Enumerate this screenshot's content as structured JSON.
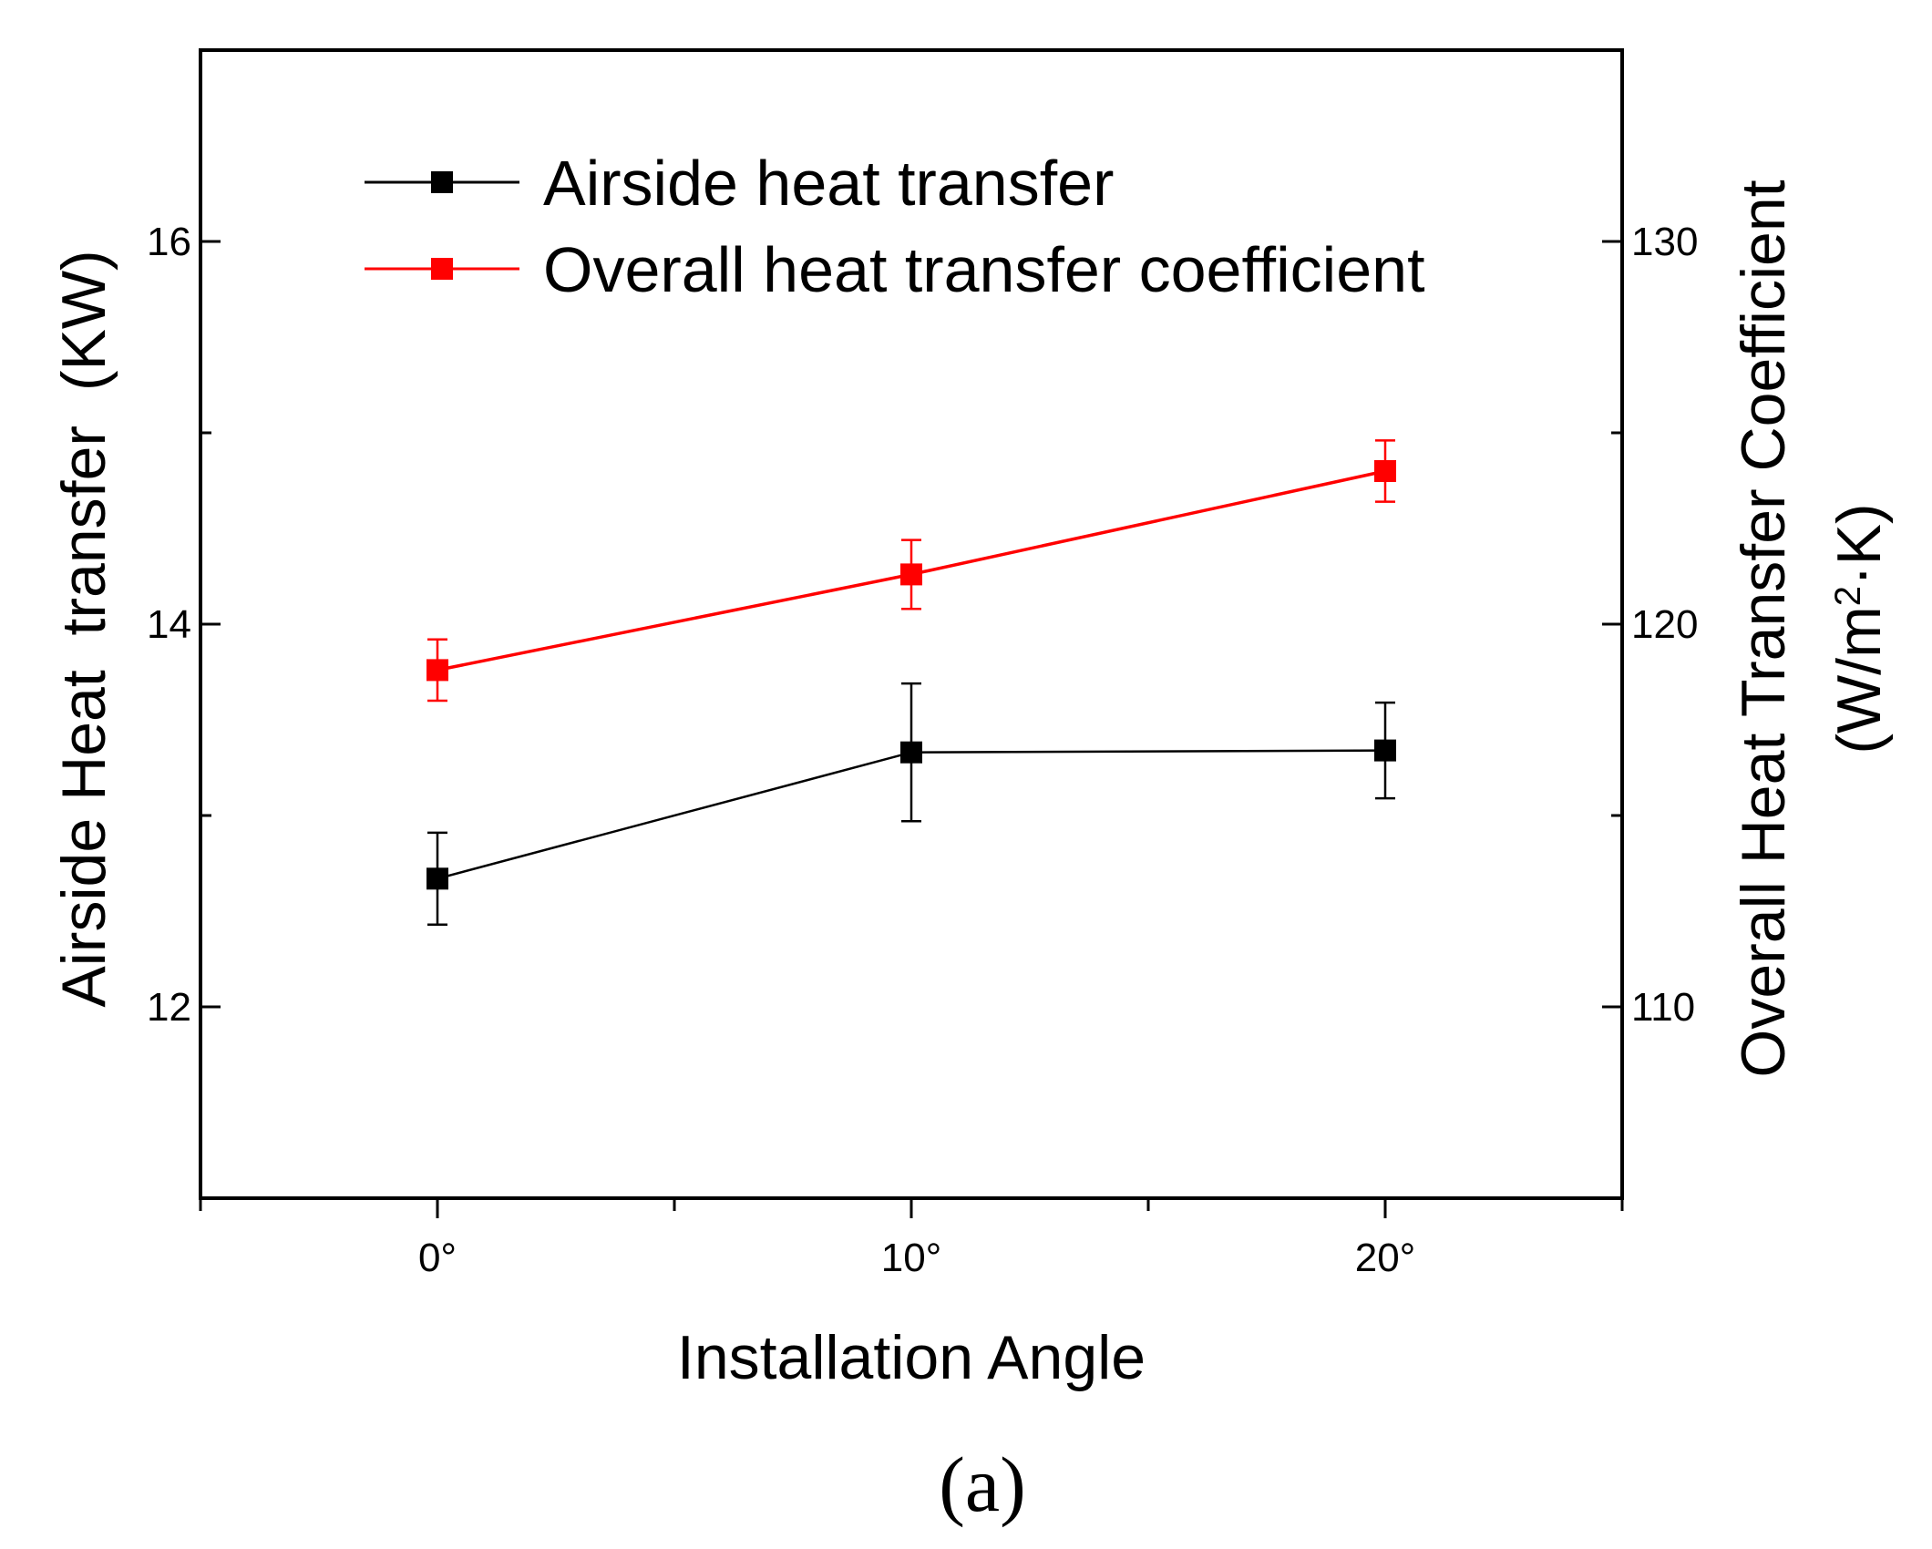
{
  "chart_data": {
    "type": "line",
    "title": "",
    "xlabel": "Installation Angle",
    "categories": [
      "0°",
      "10°",
      "20°"
    ],
    "x": [
      0,
      10,
      20
    ],
    "xlim": [
      -5,
      25
    ],
    "ylabel_left": "Airside Heat  transfer  (KW)",
    "ylim_left": [
      11,
      17
    ],
    "yticks_left": [
      12,
      14,
      16
    ],
    "ylabel_right_line1": "Overall Heat Transfer Coefficient",
    "ylabel_right_line2_prefix": "(W/m",
    "ylabel_right_line2_sup": "2",
    "ylabel_right_line2_suffix": "·K)",
    "ylim_right": [
      105,
      135
    ],
    "yticks_right": [
      110,
      120,
      130
    ],
    "series": [
      {
        "name": "Airside heat transfer",
        "axis": "left",
        "color": "#000000",
        "values": [
          12.67,
          13.33,
          13.34
        ],
        "err_low": [
          12.43,
          12.97,
          13.09
        ],
        "err_high": [
          12.91,
          13.69,
          13.59
        ]
      },
      {
        "name": "Overall heat transfer coefficient",
        "axis": "right",
        "color": "#ff0000",
        "values": [
          118.8,
          121.3,
          124.0
        ],
        "err_low": [
          118.0,
          120.4,
          123.2
        ],
        "err_high": [
          119.6,
          122.2,
          124.8
        ]
      }
    ],
    "legend_position": "top-left",
    "caption": "(a)"
  }
}
